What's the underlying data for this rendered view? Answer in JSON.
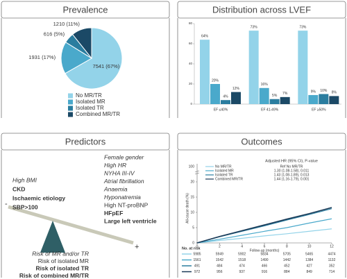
{
  "panels": [
    "Prevalence",
    "Distribution across LVEF",
    "Predictors",
    "Outcomes"
  ],
  "chart_data": [
    {
      "type": "pie",
      "categories": [
        "No MR/TR",
        "Isolated MR",
        "Isolated TR",
        "Combined MR/TR"
      ],
      "values": [
        7541,
        1931,
        616,
        1210
      ],
      "value_labels": [
        "7541 (67%)",
        "1931 (17%)",
        "616 (5%)",
        "1210 (11%)"
      ],
      "colors": [
        "#93d3e9",
        "#4aa9cb",
        "#2a7d9f",
        "#1b4966"
      ]
    },
    {
      "type": "bar",
      "categories": [
        "EF ≤40%",
        "EF 41-49%",
        "EF ≥50%"
      ],
      "series": [
        {
          "color": "#93d3e9",
          "values": [
            64,
            73,
            73
          ],
          "value_labels": [
            "64%",
            "73%",
            "73%"
          ]
        },
        {
          "color": "#4aa9cb",
          "values": [
            20,
            16,
            9
          ],
          "value_labels": [
            "20%",
            "16%",
            "9%"
          ]
        },
        {
          "color": "#2a7d9f",
          "values": [
            4,
            5,
            10
          ],
          "value_labels": [
            "4%",
            "5%",
            "10%"
          ]
        },
        {
          "color": "#1b4966",
          "values": [
            12,
            7,
            8
          ],
          "value_labels": [
            "12%",
            "7%",
            "8%"
          ]
        }
      ],
      "ylim": [
        0,
        80
      ],
      "yticks": [
        0,
        20,
        40,
        60,
        80
      ]
    },
    {
      "type": "line",
      "x": [
        0,
        2,
        4,
        6,
        8,
        10,
        12
      ],
      "series": [
        {
          "name": "No MR/TR",
          "color": "#93d3e9",
          "values": [
            0,
            0.8,
            1.5,
            2.3,
            3.0,
            3.8,
            4.6
          ]
        },
        {
          "name": "Isolated MR",
          "color": "#4aa9cb",
          "values": [
            0,
            1.2,
            2.5,
            3.8,
            5.0,
            6.5,
            7.9
          ]
        },
        {
          "name": "Isolated TR",
          "color": "#2a7d9f",
          "values": [
            0,
            2.0,
            3.8,
            5.6,
            7.5,
            9.3,
            11.2
          ]
        },
        {
          "name": "Combined MR/TR",
          "color": "#1b3a57",
          "values": [
            0,
            2.1,
            4.0,
            5.9,
            7.8,
            9.6,
            11.6
          ]
        }
      ],
      "xlim": [
        0,
        12
      ],
      "xticks": [
        0,
        2,
        4,
        6,
        8,
        10,
        12
      ],
      "ylim": [
        0,
        20
      ],
      "yticks": [
        0,
        5,
        10,
        15,
        20
      ],
      "y_break_label": "100",
      "xlabel": "Follow-up (months)",
      "ylabel": "All-cause death (%)",
      "hr_title": "Adjusted HR (95% CI), P-value",
      "hr_labels": [
        "Ref No MR/TR",
        "1.30 (1.08-1.58), 0.011",
        "1.43 (1.08-1.89), 0.013",
        "1.44 (1.16-1.79), 0.001"
      ],
      "risk_table": {
        "title": "No. at risk",
        "rows": [
          [
            5985,
            5949,
            5902,
            5834,
            5705,
            5465,
            4474
          ],
          [
            1561,
            1542,
            1518,
            1490,
            1442,
            1384,
            1132
          ],
          [
            491,
            484,
            474,
            466,
            452,
            427,
            352
          ],
          [
            972,
            956,
            937,
            916,
            884,
            849,
            714
          ]
        ]
      }
    }
  ],
  "predictors": {
    "minus": "-",
    "plus": "+",
    "left": [
      {
        "text": "High BMI",
        "color": "#333333",
        "bold": false,
        "italic": true
      },
      {
        "text": "CKD",
        "color": "#2a7db3",
        "bold": true,
        "italic": false
      },
      {
        "text": "Ischaemic etiology",
        "color": "#2a7d9f",
        "bold": true,
        "italic": false
      },
      {
        "text": "SBP>100",
        "color": "#1b4966",
        "bold": true,
        "italic": false
      }
    ],
    "right": [
      {
        "text": "Female gender",
        "color": "#444444",
        "bold": false,
        "italic": true
      },
      {
        "text": "High HR",
        "color": "#444444",
        "bold": false,
        "italic": true
      },
      {
        "text": "NYHA III-IV",
        "color": "#444444",
        "bold": false,
        "italic": true
      },
      {
        "text": "Atrial fibrillation",
        "color": "#444444",
        "bold": false,
        "italic": true
      },
      {
        "text": "Anaemia",
        "color": "#444444",
        "bold": false,
        "italic": true
      },
      {
        "text": "Hyponatremia",
        "color": "#444444",
        "bold": false,
        "italic": true
      },
      {
        "text": "High NT-proBNP",
        "color": "#4aa9cb",
        "bold": false,
        "italic": false
      },
      {
        "text": "HFpEF",
        "color": "#2a7db3",
        "bold": true,
        "italic": false
      },
      {
        "text": "Large left ventricle",
        "color": "#1b3a57",
        "bold": true,
        "italic": false
      }
    ],
    "risks": [
      {
        "text": "Risk of MR and/or TR",
        "color": "#333333",
        "bold": false,
        "italic": true
      },
      {
        "text": "Risk of isolated MR",
        "color": "#4aa9cb",
        "bold": false,
        "italic": false
      },
      {
        "text": "Risk of isolated TR",
        "color": "#2a7d9f",
        "bold": true,
        "italic": false
      },
      {
        "text": "Risk of combined MR/TR",
        "color": "#1b3a57",
        "bold": true,
        "italic": false
      }
    ]
  }
}
